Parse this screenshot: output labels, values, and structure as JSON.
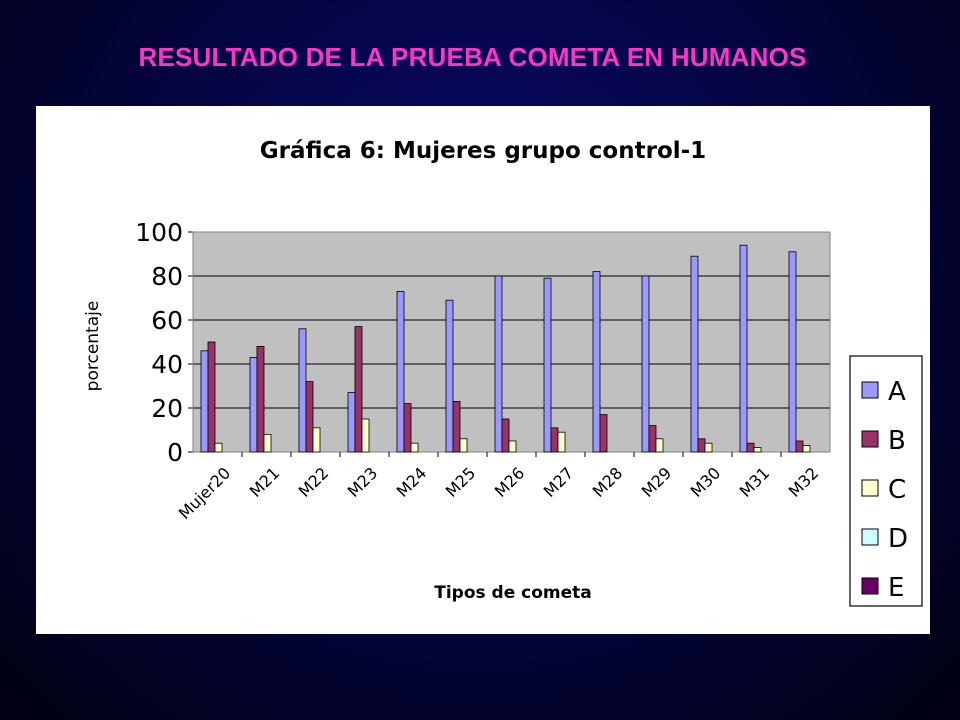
{
  "slide": {
    "title": "RESULTADO DE LA PRUEBA COMETA EN HUMANOS"
  },
  "chart_data": {
    "type": "bar",
    "title": "Gráfica 6: Mujeres grupo control-1",
    "xlabel": "Tipos de cometa",
    "ylabel": "porcentaje",
    "ylim": [
      0,
      100
    ],
    "yticks": [
      0,
      20,
      40,
      60,
      80,
      100
    ],
    "grid": true,
    "legend_position": "right",
    "categories": [
      "Mujer20",
      "M21",
      "M22",
      "M23",
      "M24",
      "M25",
      "M26",
      "M27",
      "M28",
      "M29",
      "M30",
      "M31",
      "M32"
    ],
    "series": [
      {
        "name": "A",
        "color": "#9999ff",
        "values": [
          46,
          43,
          56,
          27,
          73,
          69,
          80,
          79,
          82,
          80,
          89,
          94,
          91
        ]
      },
      {
        "name": "B",
        "color": "#993366",
        "values": [
          50,
          48,
          32,
          57,
          22,
          23,
          15,
          11,
          17,
          12,
          6,
          4,
          5
        ]
      },
      {
        "name": "C",
        "color": "#ffffcc",
        "values": [
          4,
          8,
          11,
          15,
          4,
          6,
          5,
          9,
          0,
          6,
          4,
          2,
          3
        ]
      },
      {
        "name": "D",
        "color": "#ccffff",
        "values": [
          0,
          0,
          0,
          0,
          0,
          0,
          0,
          0,
          0,
          0,
          0,
          0,
          0
        ]
      },
      {
        "name": "E",
        "color": "#660066",
        "values": [
          0,
          0,
          0,
          0,
          0,
          0,
          0,
          0,
          0,
          0,
          0,
          0,
          0
        ]
      }
    ]
  }
}
